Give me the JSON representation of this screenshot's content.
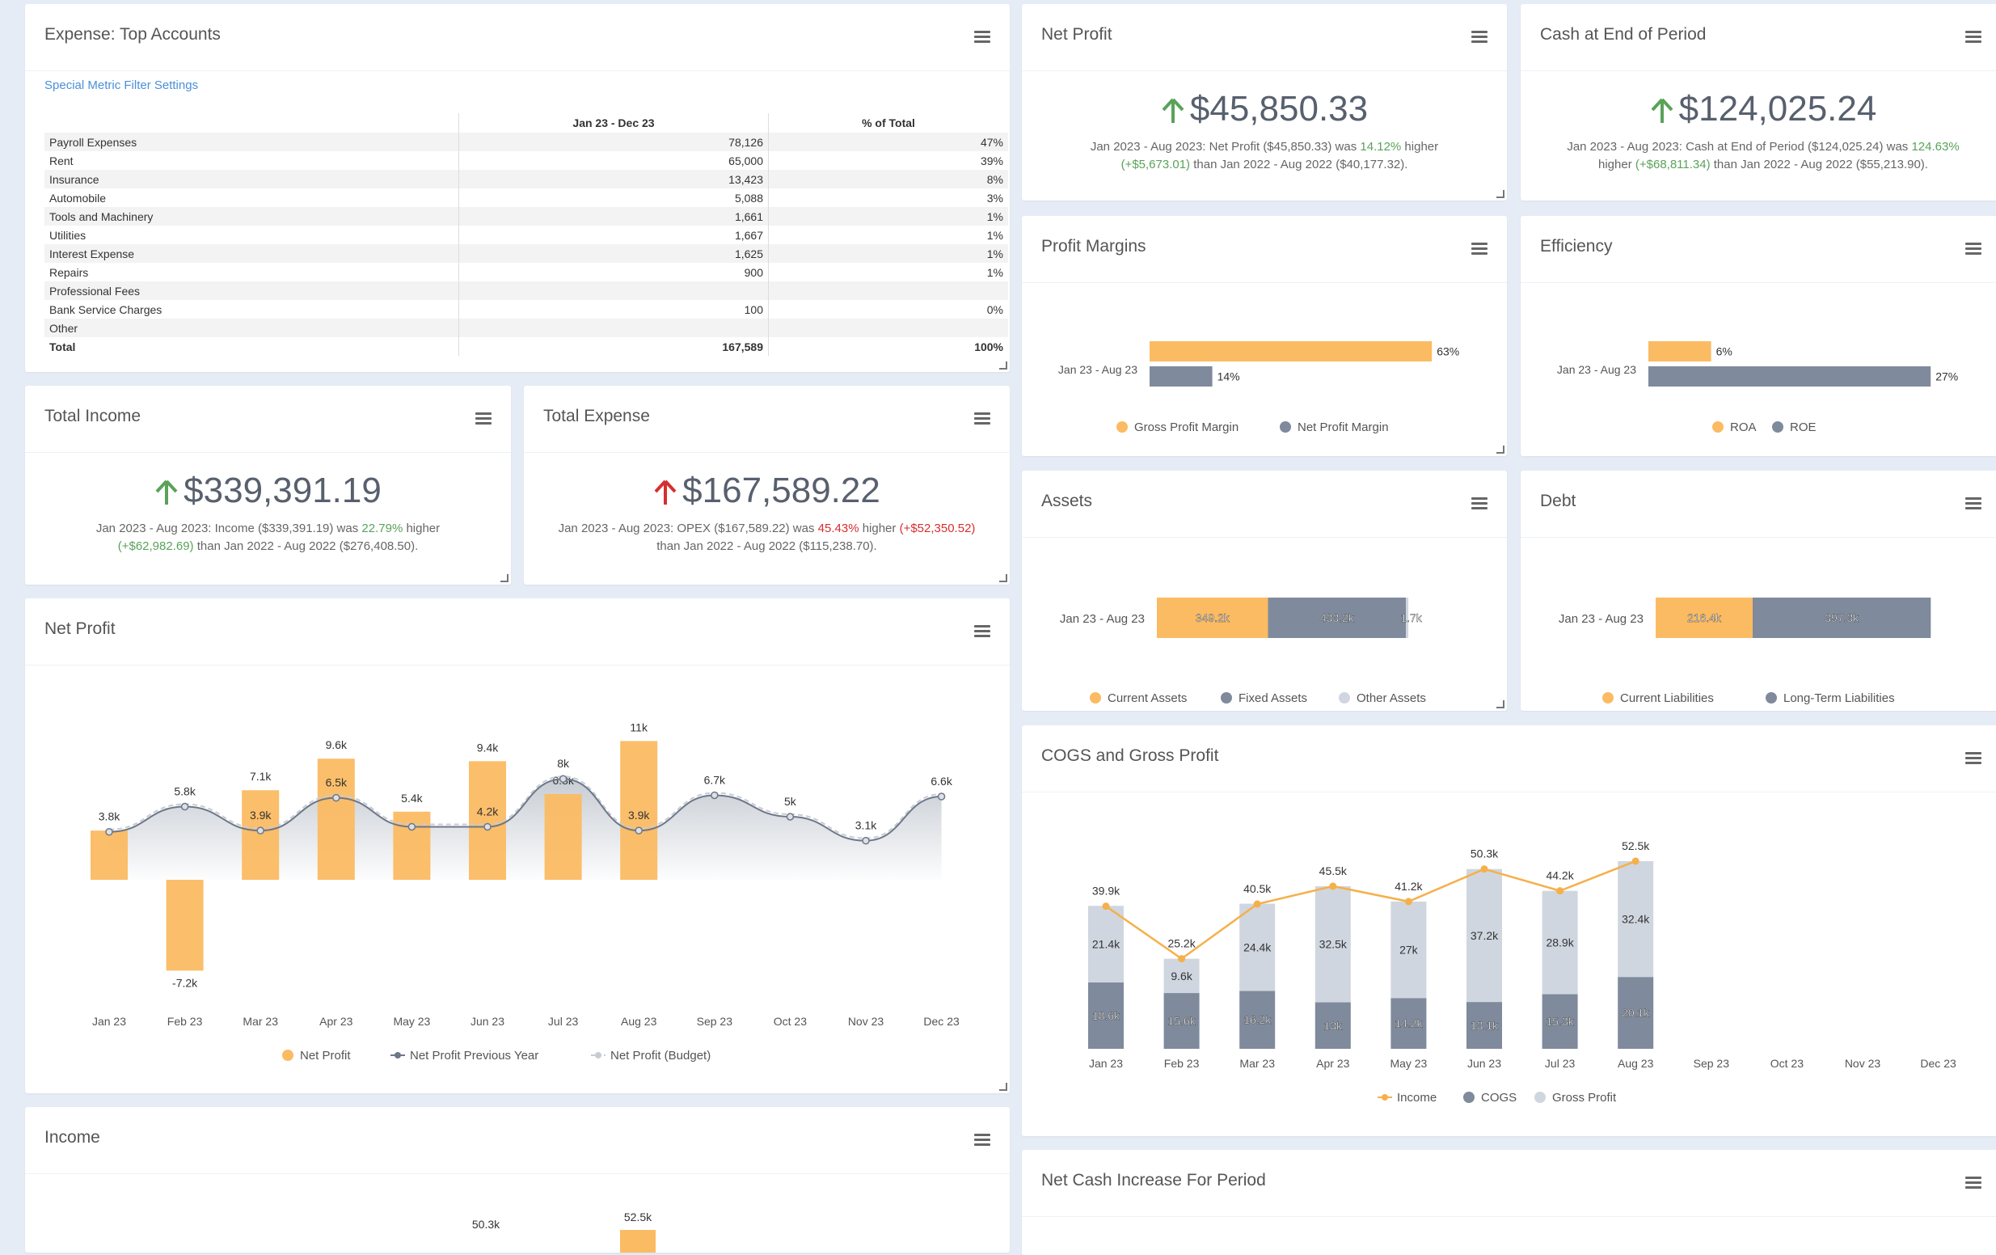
{
  "expense_accounts": {
    "title": "Expense: Top Accounts",
    "filter_link": "Special Metric Filter Settings",
    "columns": [
      "",
      "Jan 23 - Dec 23",
      "% of Total"
    ],
    "rows": [
      {
        "name": "Payroll Expenses",
        "value": "78,126",
        "pct": "47%"
      },
      {
        "name": "Rent",
        "value": "65,000",
        "pct": "39%"
      },
      {
        "name": "Insurance",
        "value": "13,423",
        "pct": "8%"
      },
      {
        "name": "Automobile",
        "value": "5,088",
        "pct": "3%"
      },
      {
        "name": "Tools and Machinery",
        "value": "1,661",
        "pct": "1%"
      },
      {
        "name": "Utilities",
        "value": "1,667",
        "pct": "1%"
      },
      {
        "name": "Interest Expense",
        "value": "1,625",
        "pct": "1%"
      },
      {
        "name": "Repairs",
        "value": "900",
        "pct": "1%"
      },
      {
        "name": "Professional Fees",
        "value": "",
        "pct": ""
      },
      {
        "name": "Bank Service Charges",
        "value": "100",
        "pct": "0%"
      },
      {
        "name": "Other",
        "value": "",
        "pct": ""
      },
      {
        "name": "Total",
        "value": "167,589",
        "pct": "100%"
      }
    ]
  },
  "net_profit_kpi": {
    "title": "Net Profit",
    "value": "$45,850.33",
    "direction": "up",
    "desc_a": "Jan 2023 - Aug 2023: Net Profit ($45,850.33) was ",
    "desc_pct": "14.12%",
    "desc_b": " higher",
    "desc_change": "(+$5,673.01)",
    "desc_c": " than Jan 2022 - Aug 2022 ($40,177.32)."
  },
  "cash_kpi": {
    "title": "Cash at End of Period",
    "value": "$124,025.24",
    "direction": "up",
    "desc_a": "Jan 2023 - Aug 2023: Cash at End of Period ($124,025.24) was ",
    "desc_pct": "124.63%",
    "desc_b": " higher ",
    "desc_change": "(+$68,811.34)",
    "desc_c": " than Jan 2022 - Aug 2022 ($55,213.90)."
  },
  "income_kpi": {
    "title": "Total Income",
    "value": "$339,391.19",
    "direction": "up",
    "desc_a": "Jan 2023 - Aug 2023: Income ($339,391.19) was ",
    "desc_pct": "22.79%",
    "desc_b": " higher",
    "desc_change": "(+$62,982.69)",
    "desc_c": " than Jan 2022 - Aug 2022 ($276,408.50)."
  },
  "expense_kpi": {
    "title": "Total Expense",
    "value": "$167,589.22",
    "direction": "up",
    "desc_a": "Jan 2023 - Aug 2023: OPEX ($167,589.22) was ",
    "desc_pct": "45.43%",
    "desc_b": " higher ",
    "desc_change": "(+$52,350.52)",
    "desc_c": "than Jan 2022 - Aug 2022 ($115,238.70)."
  },
  "panels": {
    "net_profit_chart_title": "Net Profit",
    "income_title": "Income",
    "profit_margins_title": "Profit Margins",
    "efficiency_title": "Efficiency",
    "assets_title": "Assets",
    "debt_title": "Debt",
    "cogs_title": "COGS and Gross Profit",
    "net_cash_title": "Net Cash Increase For Period"
  },
  "colors": {
    "orange": "#fbbb62",
    "slate": "#7f8a9c",
    "light": "#d0d6df",
    "up_arrow_income": "#5aa25a",
    "up_arrow_expense": "#d62f2f"
  },
  "chart_data": [
    {
      "id": "profit_margins",
      "type": "bar",
      "orientation": "horizontal",
      "categories": [
        "Jan 23 - Aug 23"
      ],
      "series": [
        {
          "name": "Gross Profit Margin",
          "values": [
            63
          ]
        },
        {
          "name": "Net Profit Margin",
          "values": [
            14
          ]
        }
      ],
      "value_labels": [
        "63%",
        "14%"
      ],
      "legend": "bottom"
    },
    {
      "id": "efficiency",
      "type": "bar",
      "orientation": "horizontal",
      "categories": [
        "Jan 23 - Aug 23"
      ],
      "series": [
        {
          "name": "ROA",
          "values": [
            6
          ]
        },
        {
          "name": "ROE",
          "values": [
            27
          ]
        }
      ],
      "value_labels": [
        "6%",
        "27%"
      ],
      "legend": "bottom"
    },
    {
      "id": "assets",
      "type": "bar",
      "orientation": "horizontal",
      "stacked": true,
      "categories": [
        "Jan 23 - Aug 23"
      ],
      "series": [
        {
          "name": "Current Assets",
          "values": [
            349.2
          ]
        },
        {
          "name": "Fixed Assets",
          "values": [
            433.2
          ]
        },
        {
          "name": "Other Assets",
          "values": [
            1.7
          ]
        }
      ],
      "value_labels": [
        "349.2k",
        "433.2k",
        "1.7k"
      ],
      "legend": "bottom"
    },
    {
      "id": "debt",
      "type": "bar",
      "orientation": "horizontal",
      "stacked": true,
      "categories": [
        "Jan 23 - Aug 23"
      ],
      "series": [
        {
          "name": "Current Liabilities",
          "values": [
            216.4
          ]
        },
        {
          "name": "Long-Term Liabilities",
          "values": [
            397.3
          ]
        }
      ],
      "value_labels": [
        "216.4k",
        "397.3k"
      ],
      "legend": "bottom"
    },
    {
      "id": "net_profit",
      "type": "bar",
      "categories": [
        "Jan 23",
        "Feb 23",
        "Mar 23",
        "Apr 23",
        "May 23",
        "Jun 23",
        "Jul 23",
        "Aug 23",
        "Sep 23",
        "Oct 23",
        "Nov 23",
        "Dec 23"
      ],
      "series": [
        {
          "name": "Net Profit",
          "type": "bar",
          "values": [
            3.9,
            -7.2,
            7.1,
            9.6,
            5.4,
            9.4,
            6.8,
            11,
            null,
            null,
            null,
            null
          ],
          "labels": [
            "",
            "-7.2k",
            "7.1k",
            "9.6k",
            "5.4k",
            "9.4k",
            "6.8k",
            "11k",
            "",
            "",
            "",
            ""
          ]
        },
        {
          "name": "Net Profit Previous Year",
          "type": "line",
          "values": [
            3.8,
            5.8,
            3.9,
            6.5,
            4.2,
            4.2,
            8,
            3.9,
            6.7,
            5,
            3.1,
            6.6
          ],
          "labels": [
            "3.8k",
            "5.8k",
            "3.9k",
            "6.5k",
            "",
            "4.2k",
            "8k",
            "3.9k",
            "6.7k",
            "5k",
            "3.1k",
            "6.6k"
          ]
        },
        {
          "name": "Net Profit (Budget)",
          "type": "line",
          "values": [
            3.8,
            5.8,
            3.9,
            6.5,
            4.2,
            4.2,
            8,
            3.9,
            6.7,
            5,
            3.1,
            6.6
          ]
        }
      ],
      "ylim": [
        -8,
        12
      ],
      "legend": "bottom"
    },
    {
      "id": "cogs_gross_profit",
      "type": "bar",
      "stacked": true,
      "categories": [
        "Jan 23",
        "Feb 23",
        "Mar 23",
        "Apr 23",
        "May 23",
        "Jun 23",
        "Jul 23",
        "Aug 23",
        "Sep 23",
        "Oct 23",
        "Nov 23",
        "Dec 23"
      ],
      "series": [
        {
          "name": "Income",
          "type": "line",
          "values": [
            39.9,
            25.2,
            40.5,
            45.5,
            41.2,
            50.3,
            44.2,
            52.5,
            null,
            null,
            null,
            null
          ]
        },
        {
          "name": "COGS",
          "type": "bar",
          "values": [
            18.6,
            15.6,
            16.2,
            13,
            14.2,
            13.1,
            15.3,
            20.1,
            null,
            null,
            null,
            null
          ]
        },
        {
          "name": "Gross Profit",
          "type": "bar",
          "values": [
            21.4,
            9.6,
            24.4,
            32.5,
            27,
            37.2,
            28.9,
            32.4,
            null,
            null,
            null,
            null
          ]
        }
      ],
      "bar_labels_cogs": [
        "18.6k",
        "15.6k",
        "16.2k",
        "13k",
        "14.2k",
        "13.1k",
        "15.3k",
        "20.1k"
      ],
      "bar_labels_gp": [
        "21.4k",
        "9.6k",
        "24.4k",
        "32.5k",
        "27k",
        "37.2k",
        "28.9k",
        "32.4k"
      ],
      "line_labels": [
        "39.9k",
        "25.2k",
        "40.5k",
        "45.5k",
        "41.2k",
        "50.3k",
        "44.2k",
        "52.5k"
      ],
      "ylim": [
        0,
        60
      ],
      "legend": "bottom"
    },
    {
      "id": "income_partial",
      "type": "bar",
      "visible_labels": [
        "50.3k",
        "52.5k"
      ]
    }
  ]
}
